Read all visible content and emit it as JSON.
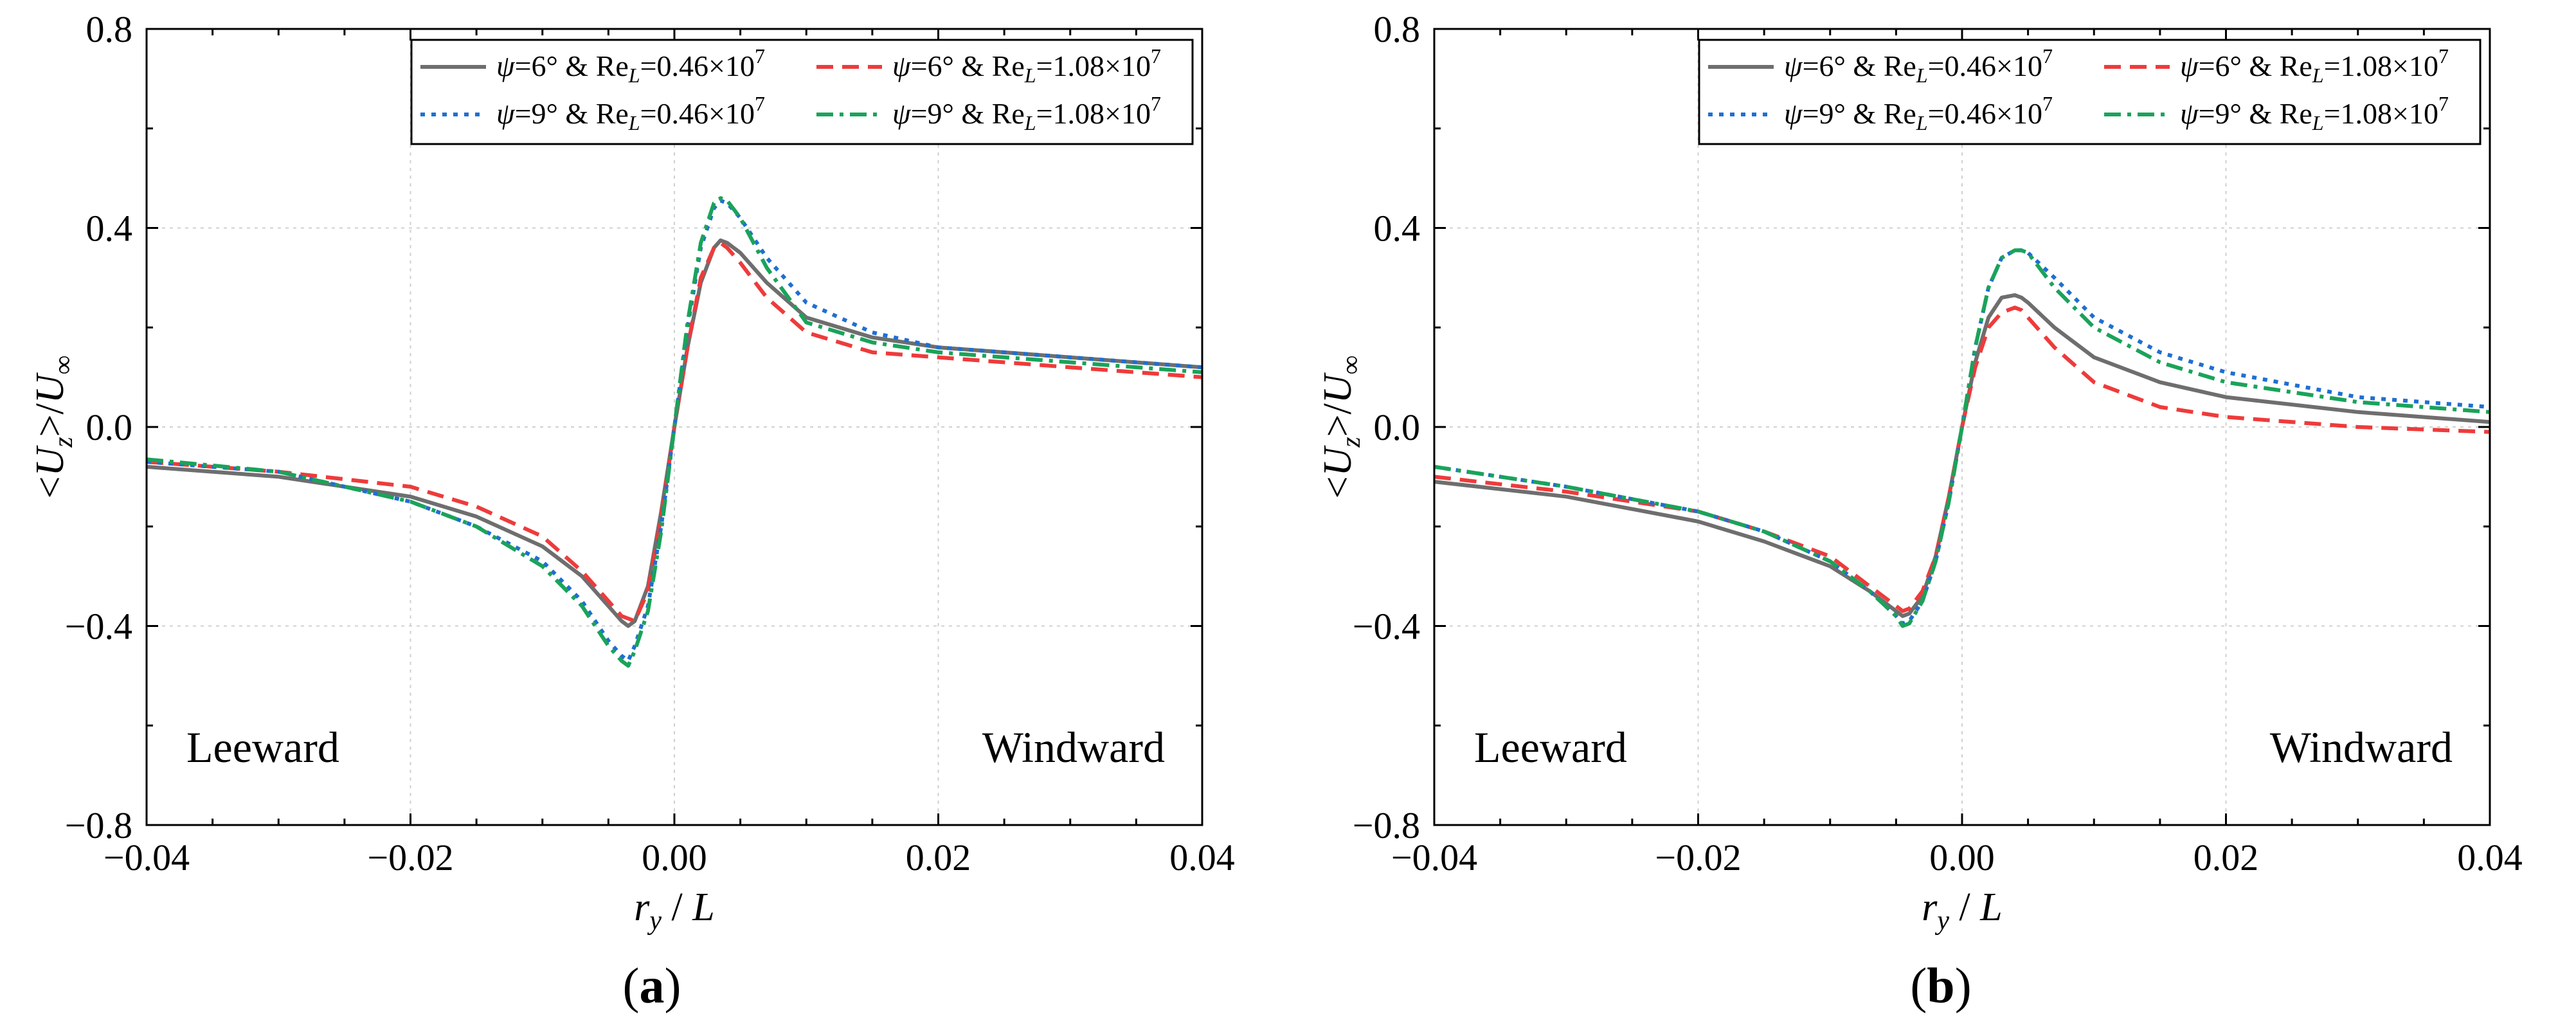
{
  "colors": {
    "psi6_Re046": "#6e6e6e",
    "psi6_Re108": "#ee3b3b",
    "psi9_Re046": "#1f6fd1",
    "psi9_Re108": "#1aa35a"
  },
  "chart_data": [
    {
      "type": "line",
      "panel_label": "a",
      "xlabel": "r_y / L",
      "ylabel": "<U_z>/U_∞",
      "xlim": [
        -0.04,
        0.04
      ],
      "ylim": [
        -0.8,
        0.8
      ],
      "xticks": [
        "−0.04",
        "−0.02",
        "0.00",
        "0.02",
        "0.04"
      ],
      "yticks": [
        "0.8",
        "0.4",
        "0.0",
        "−0.4",
        "−0.8"
      ],
      "grid": true,
      "legend_position": "top-right",
      "annotations": {
        "left": "Leeward",
        "right": "Windward"
      },
      "series": [
        {
          "name": "ψ=6° & Re_L=0.46×10^7",
          "legend_psi": "6°",
          "legend_re": "0.46×10",
          "legend_exp": "7",
          "style": "solid",
          "color_key": "psi6_Re046",
          "x": [
            -0.04,
            -0.03,
            -0.02,
            -0.015,
            -0.01,
            -0.007,
            -0.005,
            -0.004,
            -0.0035,
            -0.003,
            -0.002,
            -0.001,
            0,
            0.001,
            0.002,
            0.003,
            0.0035,
            0.004,
            0.005,
            0.007,
            0.01,
            0.015,
            0.02,
            0.03,
            0.04
          ],
          "y": [
            -0.08,
            -0.1,
            -0.14,
            -0.18,
            -0.24,
            -0.3,
            -0.36,
            -0.39,
            -0.4,
            -0.39,
            -0.32,
            -0.17,
            0,
            0.16,
            0.29,
            0.36,
            0.375,
            0.37,
            0.35,
            0.29,
            0.22,
            0.18,
            0.16,
            0.14,
            0.12
          ]
        },
        {
          "name": "ψ=6° & Re_L=1.08×10^7",
          "legend_psi": "6°",
          "legend_re": "1.08×10",
          "legend_exp": "7",
          "style": "dashed",
          "color_key": "psi6_Re108",
          "x": [
            -0.04,
            -0.03,
            -0.02,
            -0.015,
            -0.01,
            -0.007,
            -0.005,
            -0.004,
            -0.003,
            -0.002,
            -0.001,
            0,
            0.001,
            0.002,
            0.003,
            0.0035,
            0.004,
            0.005,
            0.007,
            0.01,
            0.015,
            0.02,
            0.03,
            0.04
          ],
          "y": [
            -0.07,
            -0.09,
            -0.12,
            -0.16,
            -0.22,
            -0.29,
            -0.35,
            -0.38,
            -0.39,
            -0.33,
            -0.18,
            0,
            0.16,
            0.3,
            0.36,
            0.37,
            0.36,
            0.33,
            0.26,
            0.19,
            0.15,
            0.14,
            0.12,
            0.1
          ]
        },
        {
          "name": "ψ=9° & Re_L=0.46×10^7",
          "legend_psi": "9°",
          "legend_re": "0.46×10",
          "legend_exp": "7",
          "style": "dotted",
          "color_key": "psi9_Re046",
          "x": [
            -0.04,
            -0.03,
            -0.02,
            -0.015,
            -0.01,
            -0.007,
            -0.005,
            -0.004,
            -0.0035,
            -0.003,
            -0.002,
            -0.001,
            0,
            0.001,
            0.002,
            0.003,
            0.0035,
            0.004,
            0.005,
            0.007,
            0.01,
            0.015,
            0.02,
            0.03,
            0.04
          ],
          "y": [
            -0.07,
            -0.09,
            -0.15,
            -0.2,
            -0.27,
            -0.35,
            -0.43,
            -0.46,
            -0.47,
            -0.44,
            -0.36,
            -0.2,
            0,
            0.2,
            0.36,
            0.44,
            0.455,
            0.45,
            0.42,
            0.34,
            0.25,
            0.19,
            0.16,
            0.14,
            0.12
          ]
        },
        {
          "name": "ψ=9° & Re_L=1.08×10^7",
          "legend_psi": "9°",
          "legend_re": "1.08×10",
          "legend_exp": "7",
          "style": "dashdot",
          "color_key": "psi9_Re108",
          "x": [
            -0.04,
            -0.03,
            -0.02,
            -0.015,
            -0.01,
            -0.007,
            -0.005,
            -0.004,
            -0.0035,
            -0.003,
            -0.002,
            -0.001,
            0,
            0.001,
            0.002,
            0.003,
            0.0035,
            0.004,
            0.005,
            0.007,
            0.01,
            0.015,
            0.02,
            0.03,
            0.04
          ],
          "y": [
            -0.065,
            -0.09,
            -0.15,
            -0.2,
            -0.28,
            -0.36,
            -0.44,
            -0.47,
            -0.48,
            -0.45,
            -0.37,
            -0.21,
            0,
            0.21,
            0.37,
            0.45,
            0.46,
            0.455,
            0.42,
            0.32,
            0.21,
            0.17,
            0.15,
            0.13,
            0.11
          ]
        }
      ]
    },
    {
      "type": "line",
      "panel_label": "b",
      "xlabel": "r_y / L",
      "ylabel": "<U_z>/U_∞",
      "xlim": [
        -0.04,
        0.04
      ],
      "ylim": [
        -0.8,
        0.8
      ],
      "xticks": [
        "−0.04",
        "−0.02",
        "0.00",
        "0.02",
        "0.04"
      ],
      "yticks": [
        "0.8",
        "0.4",
        "0.0",
        "−0.4",
        "−0.8"
      ],
      "grid": true,
      "legend_position": "top-right",
      "annotations": {
        "left": "Leeward",
        "right": "Windward"
      },
      "series": [
        {
          "name": "ψ=6° & Re_L=0.46×10^7",
          "legend_psi": "6°",
          "legend_re": "0.46×10",
          "legend_exp": "7",
          "style": "solid",
          "color_key": "psi6_Re046",
          "x": [
            -0.04,
            -0.03,
            -0.02,
            -0.015,
            -0.01,
            -0.007,
            -0.005,
            -0.0045,
            -0.004,
            -0.003,
            -0.002,
            -0.001,
            0,
            0.001,
            0.002,
            0.003,
            0.004,
            0.0045,
            0.005,
            0.007,
            0.01,
            0.015,
            0.02,
            0.03,
            0.04
          ],
          "y": [
            -0.11,
            -0.14,
            -0.19,
            -0.23,
            -0.28,
            -0.33,
            -0.37,
            -0.38,
            -0.375,
            -0.34,
            -0.26,
            -0.14,
            0,
            0.13,
            0.22,
            0.26,
            0.265,
            0.26,
            0.25,
            0.2,
            0.14,
            0.09,
            0.06,
            0.03,
            0.01
          ]
        },
        {
          "name": "ψ=6° & Re_L=1.08×10^7",
          "legend_psi": "6°",
          "legend_re": "1.08×10",
          "legend_exp": "7",
          "style": "dashed",
          "color_key": "psi6_Re108",
          "x": [
            -0.04,
            -0.03,
            -0.02,
            -0.015,
            -0.01,
            -0.007,
            -0.005,
            -0.0045,
            -0.004,
            -0.003,
            -0.002,
            -0.001,
            0,
            0.001,
            0.002,
            0.003,
            0.004,
            0.0045,
            0.005,
            0.007,
            0.01,
            0.015,
            0.02,
            0.03,
            0.04
          ],
          "y": [
            -0.1,
            -0.13,
            -0.17,
            -0.21,
            -0.26,
            -0.32,
            -0.36,
            -0.37,
            -0.365,
            -0.33,
            -0.26,
            -0.14,
            0,
            0.12,
            0.2,
            0.23,
            0.24,
            0.235,
            0.22,
            0.16,
            0.09,
            0.04,
            0.02,
            0.0,
            -0.01
          ]
        },
        {
          "name": "ψ=9° & Re_L=0.46×10^7",
          "legend_psi": "9°",
          "legend_re": "0.46×10",
          "legend_exp": "7",
          "style": "dotted",
          "color_key": "psi9_Re046",
          "x": [
            -0.04,
            -0.03,
            -0.02,
            -0.015,
            -0.01,
            -0.007,
            -0.005,
            -0.0045,
            -0.004,
            -0.003,
            -0.002,
            -0.001,
            0,
            0.001,
            0.002,
            0.003,
            0.004,
            0.0045,
            0.005,
            0.007,
            0.01,
            0.015,
            0.02,
            0.03,
            0.04
          ],
          "y": [
            -0.08,
            -0.12,
            -0.17,
            -0.21,
            -0.27,
            -0.33,
            -0.38,
            -0.395,
            -0.39,
            -0.35,
            -0.27,
            -0.15,
            0,
            0.16,
            0.28,
            0.34,
            0.355,
            0.355,
            0.35,
            0.3,
            0.22,
            0.15,
            0.11,
            0.06,
            0.04
          ]
        },
        {
          "name": "ψ=9° & Re_L=1.08×10^7",
          "legend_psi": "9°",
          "legend_re": "1.08×10",
          "legend_exp": "7",
          "style": "dashdot",
          "color_key": "psi9_Re108",
          "x": [
            -0.04,
            -0.03,
            -0.02,
            -0.015,
            -0.01,
            -0.007,
            -0.005,
            -0.0045,
            -0.004,
            -0.003,
            -0.002,
            -0.001,
            0,
            0.001,
            0.002,
            0.003,
            0.004,
            0.0045,
            0.005,
            0.007,
            0.01,
            0.015,
            0.02,
            0.03,
            0.04
          ],
          "y": [
            -0.08,
            -0.12,
            -0.17,
            -0.21,
            -0.27,
            -0.33,
            -0.38,
            -0.4,
            -0.395,
            -0.35,
            -0.27,
            -0.15,
            0,
            0.16,
            0.28,
            0.34,
            0.355,
            0.355,
            0.35,
            0.28,
            0.2,
            0.13,
            0.09,
            0.05,
            0.03
          ]
        }
      ]
    }
  ]
}
